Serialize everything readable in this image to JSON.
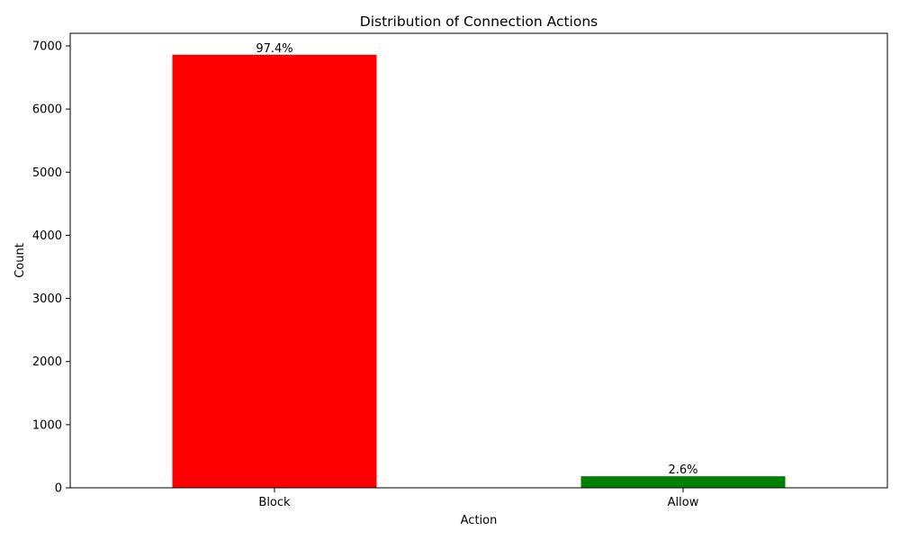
{
  "chart_data": {
    "type": "bar",
    "title": "Distribution of Connection Actions",
    "xlabel": "Action",
    "ylabel": "Count",
    "categories": [
      "Block",
      "Allow"
    ],
    "values": [
      6860,
      183
    ],
    "bar_labels": [
      "97.4%",
      "2.6%"
    ],
    "colors": [
      "#ff0000",
      "#008000"
    ],
    "ylim": [
      0,
      7200
    ],
    "yticks": [
      0,
      1000,
      2000,
      3000,
      4000,
      5000,
      6000,
      7000
    ],
    "grid": false,
    "legend": "none"
  }
}
